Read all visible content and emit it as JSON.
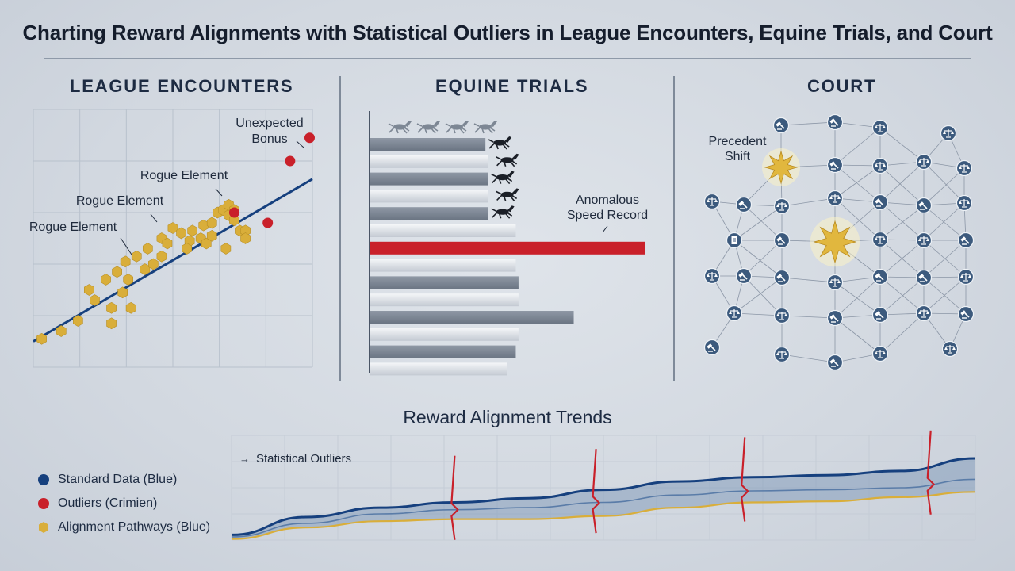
{
  "title": "Charting Reward Alignments with Statistical Outliers in League Encounters, Equine Trials, and Court",
  "colors": {
    "blue": "#16407e",
    "red": "#c9202a",
    "gold": "#d9ae3a",
    "grid": "#b8c1cc",
    "node": "#3c5a7d"
  },
  "chart_data": [
    {
      "type": "scatter",
      "title": "LEAGUE ENCOUNTERS",
      "xlabel": "",
      "ylabel": "",
      "xlim": [
        0,
        100
      ],
      "ylim": [
        0,
        100
      ],
      "grid": true,
      "trend_line": {
        "x": [
          0,
          100
        ],
        "y": [
          10,
          73
        ]
      },
      "series": [
        {
          "name": "",
          "color": "#d9ae3a",
          "marker": "hexagon",
          "points": [
            [
              3,
              11
            ],
            [
              10,
              14
            ],
            [
              16,
              18
            ],
            [
              22,
              26
            ],
            [
              28,
              23
            ],
            [
              28,
              17
            ],
            [
              20,
              30
            ],
            [
              32,
              29
            ],
            [
              35,
              23
            ],
            [
              26,
              34
            ],
            [
              30,
              37
            ],
            [
              33,
              41
            ],
            [
              34,
              34
            ],
            [
              37,
              43
            ],
            [
              41,
              46
            ],
            [
              40,
              38
            ],
            [
              43,
              40
            ],
            [
              46,
              43
            ],
            [
              46,
              50
            ],
            [
              48,
              48
            ],
            [
              50,
              54
            ],
            [
              53,
              52
            ],
            [
              56,
              49
            ],
            [
              55,
              46
            ],
            [
              57,
              53
            ],
            [
              60,
              50
            ],
            [
              61,
              55
            ],
            [
              64,
              56
            ],
            [
              62,
              48
            ],
            [
              66,
              60
            ],
            [
              68,
              61
            ],
            [
              70,
              59
            ],
            [
              72,
              57
            ],
            [
              74,
              53
            ],
            [
              76,
              53
            ],
            [
              76,
              50
            ],
            [
              70,
              63
            ],
            [
              64,
              51
            ],
            [
              69,
              46
            ],
            [
              72,
              61
            ]
          ]
        },
        {
          "name": "",
          "color": "#c9202a",
          "marker": "circle",
          "points": [
            [
              92,
              80
            ],
            [
              99,
              89
            ],
            [
              72,
              60
            ],
            [
              84,
              56
            ]
          ]
        }
      ],
      "annotations": [
        {
          "text": "Unexpected",
          "text2": "Bonus",
          "x": 99,
          "y": 89
        },
        {
          "text": "Rogue Element",
          "x": 72,
          "y": 60
        },
        {
          "text": "Rogue Element",
          "x": 46,
          "y": 50
        },
        {
          "text": "Rogue Element",
          "x": 33,
          "y": 41
        }
      ]
    },
    {
      "type": "bar",
      "orientation": "horizontal",
      "title": "EQUINE TRIALS",
      "xlim": [
        0,
        100
      ],
      "values": [
        42,
        43,
        43,
        43,
        43,
        53,
        100,
        53,
        54,
        54,
        74,
        54,
        53,
        50
      ],
      "outlier_index": 6,
      "horse_icons": 9,
      "annotations": [
        {
          "text": "Anomalous",
          "text2": "Speed Record"
        }
      ]
    },
    {
      "type": "network",
      "title": "COURT",
      "annotations": [
        {
          "text": "Precedent",
          "text2": "Shift"
        }
      ],
      "node_icons": [
        "gavel-icon",
        "scales-icon",
        "document-icon",
        "star-icon"
      ]
    },
    {
      "type": "area",
      "title": "Reward Alignment Trends",
      "xlabel": "",
      "ylabel": "",
      "xlim": [
        0,
        100
      ],
      "ylim": [
        0,
        100
      ],
      "grid": true,
      "annotations": [
        {
          "text": "Statistical Outliers"
        }
      ],
      "series": [
        {
          "name": "",
          "color": "#16407e",
          "x": [
            0,
            10,
            20,
            30,
            40,
            50,
            60,
            70,
            80,
            90,
            100
          ],
          "y": [
            5,
            22,
            31,
            36,
            40,
            48,
            56,
            60,
            62,
            66,
            78
          ]
        },
        {
          "name": "",
          "color": "#5a7ca8",
          "x": [
            0,
            10,
            20,
            30,
            40,
            50,
            60,
            70,
            80,
            90,
            100
          ],
          "y": [
            3,
            16,
            25,
            29,
            31,
            36,
            43,
            47,
            48,
            50,
            58
          ]
        },
        {
          "name": "",
          "color": "#d9ae3a",
          "x": [
            0,
            10,
            20,
            30,
            40,
            50,
            60,
            70,
            80,
            90,
            100
          ],
          "y": [
            1,
            12,
            18,
            20,
            20,
            23,
            31,
            36,
            37,
            41,
            46
          ]
        }
      ],
      "outlier_x": [
        30,
        49,
        69,
        94
      ]
    }
  ],
  "legend": [
    {
      "label": "Standard Data (Blue)",
      "color": "#16407e",
      "shape": "circle"
    },
    {
      "label": "Outliers (Crimien)",
      "color": "#c9202a",
      "shape": "circle"
    },
    {
      "label": "Alignment Pathways (Blue)",
      "color": "#d9ae3a",
      "shape": "hexagon"
    }
  ]
}
